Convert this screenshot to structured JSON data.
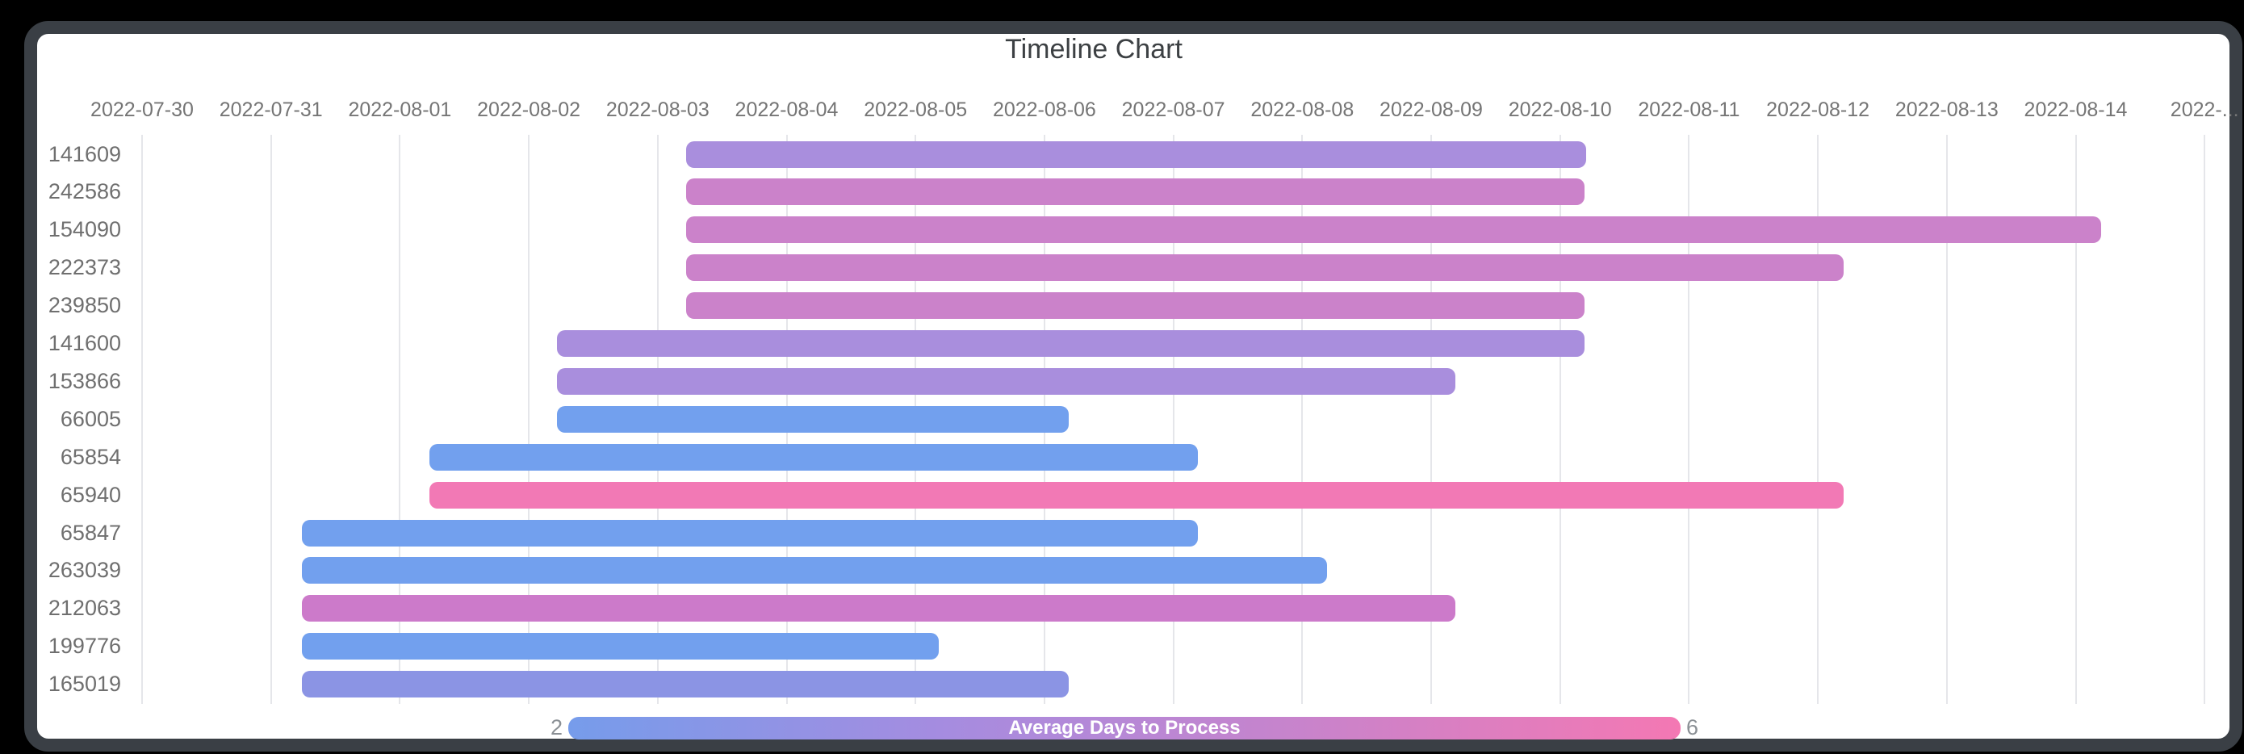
{
  "page": {
    "background": "#000000",
    "card_border_color": "#3a3f45",
    "card_background": "#ffffff"
  },
  "chart_data": {
    "type": "timeline",
    "title": "Timeline Chart",
    "grid": true,
    "x_axis": {
      "start_date": "2022-07-30",
      "interval_days": 1,
      "tick_labels": [
        "2022-07-30",
        "2022-07-31",
        "2022-08-01",
        "2022-08-02",
        "2022-08-03",
        "2022-08-04",
        "2022-08-05",
        "2022-08-06",
        "2022-08-07",
        "2022-08-08",
        "2022-08-09",
        "2022-08-10",
        "2022-08-11",
        "2022-08-12",
        "2022-08-13",
        "2022-08-14",
        "2022-..."
      ]
    },
    "rows": [
      {
        "id": "141609",
        "start_date": "2022-08-03",
        "end_date": "2022-08-10",
        "start_day_offset": 4.22,
        "end_day_offset": 11.2,
        "color": "#a98edd",
        "avg_days_to_process_approx": 3
      },
      {
        "id": "242586",
        "start_date": "2022-08-03",
        "end_date": "2022-08-10",
        "start_day_offset": 4.22,
        "end_day_offset": 11.19,
        "color": "#cb82ca",
        "avg_days_to_process_approx": 4.5
      },
      {
        "id": "154090",
        "start_date": "2022-08-03",
        "end_date": "2022-08-14",
        "start_day_offset": 4.22,
        "end_day_offset": 15.2,
        "color": "#cb82ca",
        "avg_days_to_process_approx": 4.5
      },
      {
        "id": "222373",
        "start_date": "2022-08-03",
        "end_date": "2022-08-12",
        "start_day_offset": 4.22,
        "end_day_offset": 13.2,
        "color": "#cb82ca",
        "avg_days_to_process_approx": 4.5
      },
      {
        "id": "239850",
        "start_date": "2022-08-03",
        "end_date": "2022-08-10",
        "start_day_offset": 4.22,
        "end_day_offset": 11.19,
        "color": "#cb82ca",
        "avg_days_to_process_approx": 4.5
      },
      {
        "id": "141600",
        "start_date": "2022-08-02",
        "end_date": "2022-08-10",
        "start_day_offset": 3.22,
        "end_day_offset": 11.19,
        "color": "#a98edd",
        "avg_days_to_process_approx": 3
      },
      {
        "id": "153866",
        "start_date": "2022-08-02",
        "end_date": "2022-08-09",
        "start_day_offset": 3.22,
        "end_day_offset": 10.19,
        "color": "#a98edd",
        "avg_days_to_process_approx": 3
      },
      {
        "id": "66005",
        "start_date": "2022-08-02",
        "end_date": "2022-08-06",
        "start_day_offset": 3.22,
        "end_day_offset": 7.19,
        "color": "#72a0ee",
        "avg_days_to_process_approx": 2
      },
      {
        "id": "65854",
        "start_date": "2022-08-01",
        "end_date": "2022-08-07",
        "start_day_offset": 2.23,
        "end_day_offset": 8.19,
        "color": "#72a0ee",
        "avg_days_to_process_approx": 2
      },
      {
        "id": "65940",
        "start_date": "2022-08-01",
        "end_date": "2022-08-12",
        "start_day_offset": 2.23,
        "end_day_offset": 13.2,
        "color": "#f279b5",
        "avg_days_to_process_approx": 6
      },
      {
        "id": "65847",
        "start_date": "2022-07-31",
        "end_date": "2022-08-07",
        "start_day_offset": 1.24,
        "end_day_offset": 8.19,
        "color": "#72a0ee",
        "avg_days_to_process_approx": 2
      },
      {
        "id": "263039",
        "start_date": "2022-07-31",
        "end_date": "2022-08-08",
        "start_day_offset": 1.24,
        "end_day_offset": 9.19,
        "color": "#72a0ee",
        "avg_days_to_process_approx": 2
      },
      {
        "id": "212063",
        "start_date": "2022-07-31",
        "end_date": "2022-08-09",
        "start_day_offset": 1.24,
        "end_day_offset": 10.19,
        "color": "#cc7aca",
        "avg_days_to_process_approx": 5
      },
      {
        "id": "199776",
        "start_date": "2022-07-31",
        "end_date": "2022-08-05",
        "start_day_offset": 1.24,
        "end_day_offset": 6.18,
        "color": "#72a0ee",
        "avg_days_to_process_approx": 2
      },
      {
        "id": "165019",
        "start_date": "2022-07-31",
        "end_date": "2022-08-06",
        "start_day_offset": 1.24,
        "end_day_offset": 7.19,
        "color": "#8b94e4",
        "avg_days_to_process_approx": 2.5
      }
    ],
    "legend": {
      "label": "Average Days to Process",
      "min": "2",
      "max": "6",
      "gradient": [
        "#769ceb",
        "#a58ce0",
        "#c983cb",
        "#f478b3"
      ],
      "position": "bottom"
    }
  }
}
